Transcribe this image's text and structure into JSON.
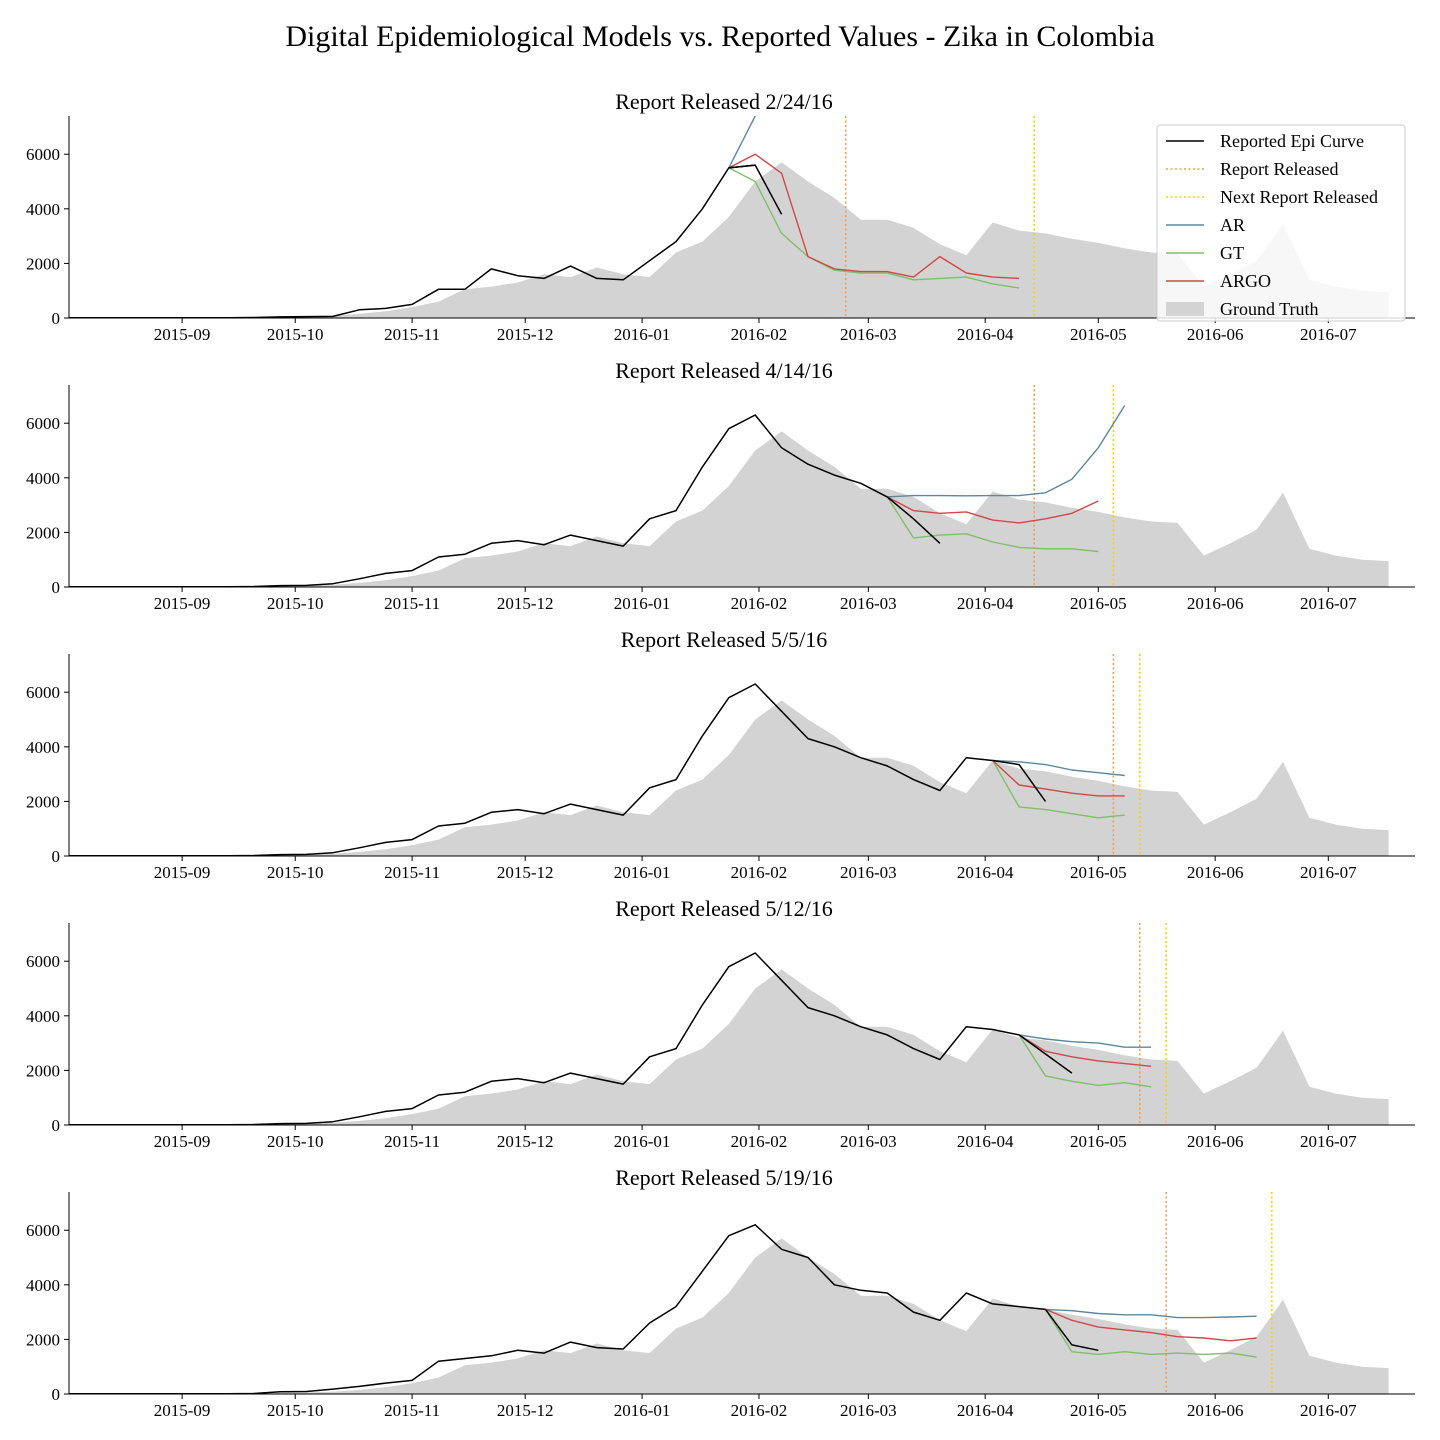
{
  "title": "Digital Epidemiological Models vs. Reported Values - Zika in Colombia",
  "legend": {
    "placement": "top-right of first panel",
    "items": [
      {
        "key": "reported",
        "label": "Reported Epi Curve",
        "color": "#000000",
        "style": "solid"
      },
      {
        "key": "release",
        "label": "Report Released",
        "color": "#f0a050",
        "style": "dotted"
      },
      {
        "key": "next",
        "label": "Next Report Released",
        "color": "#f5d200",
        "style": "dotted"
      },
      {
        "key": "ar",
        "label": "AR",
        "color": "#5b87a0",
        "style": "solid"
      },
      {
        "key": "gt",
        "label": "GT",
        "color": "#7fbf6a",
        "style": "solid"
      },
      {
        "key": "argo",
        "label": "ARGO",
        "color": "#d04848",
        "style": "solid"
      },
      {
        "key": "truth",
        "label": "Ground Truth",
        "color": "#d3d3d3",
        "style": "area"
      }
    ]
  },
  "chart_data": {
    "type": "line",
    "axes": {
      "x_range": [
        "2015-08-02",
        "2016-07-24"
      ],
      "y_range": [
        0,
        7400
      ],
      "y_ticks": [
        0,
        2000,
        4000,
        6000
      ],
      "x_ticks": [
        {
          "date": "2015-09-01",
          "label": "2015-09"
        },
        {
          "date": "2015-10-01",
          "label": "2015-10"
        },
        {
          "date": "2015-11-01",
          "label": "2015-11"
        },
        {
          "date": "2015-12-01",
          "label": "2015-12"
        },
        {
          "date": "2016-01-01",
          "label": "2016-01"
        },
        {
          "date": "2016-02-01",
          "label": "2016-02"
        },
        {
          "date": "2016-03-01",
          "label": "2016-03"
        },
        {
          "date": "2016-04-01",
          "label": "2016-04"
        },
        {
          "date": "2016-05-01",
          "label": "2016-05"
        },
        {
          "date": "2016-06-01",
          "label": "2016-06"
        },
        {
          "date": "2016-07-01",
          "label": "2016-07"
        }
      ],
      "grid": false
    },
    "ground_truth": {
      "start": "2015-08-02",
      "step_days": 7,
      "values": [
        10,
        10,
        10,
        10,
        10,
        10,
        10,
        20,
        40,
        60,
        80,
        150,
        250,
        400,
        600,
        1050,
        1150,
        1300,
        1600,
        1500,
        1850,
        1600,
        1500,
        2400,
        2800,
        3700,
        5000,
        5700,
        5000,
        4400,
        3600,
        3600,
        3300,
        2700,
        2300,
        3500,
        3200,
        3100,
        2900,
        2750,
        2550,
        2400,
        2350,
        1150,
        1600,
        2100,
        3450,
        1400,
        1150,
        1000,
        950
      ]
    },
    "panels": [
      {
        "title": "Report Released 2/24/16",
        "report_released": "2016-02-24",
        "next_report_released": "2016-04-14",
        "reported": {
          "start": "2015-08-02",
          "values": [
            10,
            10,
            10,
            10,
            10,
            10,
            10,
            20,
            40,
            50,
            60,
            300,
            350,
            500,
            1050,
            1050,
            1800,
            1550,
            1450,
            1900,
            1450,
            1400,
            2100,
            2800,
            4000,
            5500,
            5600
          ]
        },
        "reported_tail": {
          "start": "2016-01-24",
          "values": [
            5500,
            5600,
            3800
          ]
        },
        "ar": {
          "start": "2016-01-24",
          "values": [
            5500,
            7400
          ]
        },
        "gt": {
          "start": "2016-01-24",
          "values": [
            5500,
            5000,
            3100,
            2250,
            1750,
            1650,
            1650,
            1400,
            1450,
            1500,
            1250,
            1100
          ]
        },
        "argo": {
          "start": "2016-01-24",
          "values": [
            5500,
            6000,
            5300,
            2250,
            1800,
            1700,
            1700,
            1500,
            2250,
            1650,
            1500,
            1450
          ]
        }
      },
      {
        "title": "Report Released 4/14/16",
        "report_released": "2016-04-14",
        "next_report_released": "2016-05-05",
        "reported": {
          "start": "2015-08-02",
          "values": [
            10,
            10,
            10,
            10,
            10,
            10,
            10,
            20,
            50,
            60,
            120,
            300,
            500,
            600,
            1100,
            1200,
            1600,
            1700,
            1550,
            1900,
            1700,
            1500,
            2500,
            2800,
            4400,
            5800,
            6300,
            5100,
            4500,
            4100,
            3800,
            3300
          ]
        },
        "reported_tail": {
          "start": "2016-03-06",
          "values": [
            3300,
            2500,
            1600
          ]
        },
        "ar": {
          "start": "2016-03-06",
          "values": [
            3300,
            3350,
            3350,
            3340,
            3350,
            3350,
            3450,
            3950,
            5100,
            6650
          ]
        },
        "gt": {
          "start": "2016-03-06",
          "values": [
            3300,
            1800,
            1900,
            1950,
            1650,
            1450,
            1400,
            1400,
            1300
          ]
        },
        "argo": {
          "start": "2016-03-06",
          "values": [
            3300,
            2800,
            2700,
            2750,
            2450,
            2350,
            2500,
            2700,
            3150
          ]
        }
      },
      {
        "title": "Report Released 5/5/16",
        "report_released": "2016-05-05",
        "next_report_released": "2016-05-12",
        "reported": {
          "start": "2015-08-02",
          "values": [
            10,
            10,
            10,
            10,
            10,
            10,
            10,
            20,
            50,
            60,
            120,
            300,
            500,
            600,
            1100,
            1200,
            1600,
            1700,
            1550,
            1900,
            1700,
            1500,
            2500,
            2800,
            4400,
            5800,
            6300,
            5300,
            4300,
            4000,
            3600,
            3300,
            2800,
            2400,
            3600,
            3500
          ]
        },
        "reported_tail": {
          "start": "2016-04-03",
          "values": [
            3500,
            3350,
            2000
          ]
        },
        "ar": {
          "start": "2016-04-03",
          "values": [
            3500,
            3450,
            3350,
            3150,
            3050,
            2950
          ]
        },
        "gt": {
          "start": "2016-04-03",
          "values": [
            3500,
            1800,
            1700,
            1550,
            1400,
            1500
          ]
        },
        "argo": {
          "start": "2016-04-03",
          "values": [
            3500,
            2600,
            2450,
            2300,
            2200,
            2200
          ]
        }
      },
      {
        "title": "Report Released 5/12/16",
        "report_released": "2016-05-12",
        "next_report_released": "2016-05-19",
        "reported": {
          "start": "2015-08-02",
          "values": [
            10,
            10,
            10,
            10,
            10,
            10,
            10,
            20,
            50,
            60,
            120,
            300,
            500,
            600,
            1100,
            1200,
            1600,
            1700,
            1550,
            1900,
            1700,
            1500,
            2500,
            2800,
            4400,
            5800,
            6300,
            5300,
            4300,
            4000,
            3600,
            3300,
            2800,
            2400,
            3600,
            3500,
            3300
          ]
        },
        "reported_tail": {
          "start": "2016-04-10",
          "values": [
            3300,
            2600,
            1900
          ]
        },
        "ar": {
          "start": "2016-04-10",
          "values": [
            3300,
            3150,
            3050,
            3000,
            2850,
            2850
          ]
        },
        "gt": {
          "start": "2016-04-10",
          "values": [
            3300,
            1800,
            1600,
            1450,
            1550,
            1400
          ]
        },
        "argo": {
          "start": "2016-04-10",
          "values": [
            3300,
            2700,
            2500,
            2350,
            2250,
            2150
          ]
        }
      },
      {
        "title": "Report Released 5/19/16",
        "report_released": "2016-05-19",
        "next_report_released": "2016-06-16",
        "reported": {
          "start": "2015-08-02",
          "values": [
            10,
            10,
            10,
            10,
            10,
            10,
            10,
            20,
            80,
            90,
            180,
            280,
            400,
            500,
            1200,
            1300,
            1400,
            1600,
            1500,
            1900,
            1700,
            1650,
            2600,
            3200,
            4500,
            5800,
            6200,
            5300,
            5000,
            4000,
            3800,
            3700,
            3000,
            2700,
            3700,
            3300,
            3200,
            3100
          ]
        },
        "reported_tail": {
          "start": "2016-04-17",
          "values": [
            3100,
            1800,
            1600
          ]
        },
        "ar": {
          "start": "2016-04-17",
          "values": [
            3100,
            3050,
            2950,
            2900,
            2900,
            2800,
            2800,
            2820,
            2850
          ]
        },
        "gt": {
          "start": "2016-04-17",
          "values": [
            3100,
            1550,
            1450,
            1550,
            1450,
            1500,
            1450,
            1500,
            1350
          ]
        },
        "argo": {
          "start": "2016-04-17",
          "values": [
            3100,
            2700,
            2450,
            2350,
            2250,
            2100,
            2050,
            1950,
            2050
          ]
        }
      }
    ]
  }
}
